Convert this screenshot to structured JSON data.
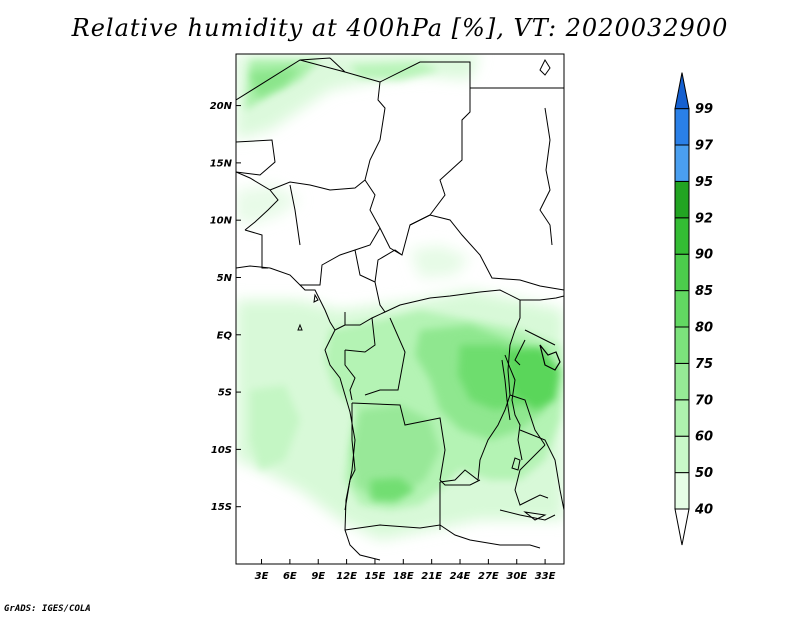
{
  "title": "Relative humidity at 400hPa [%], VT: 2020032900",
  "credit": "GrADS: IGES/COLA",
  "map": {
    "lat_labels": [
      "20N",
      "15N",
      "10N",
      "5N",
      "EQ",
      "5S",
      "10S",
      "15S"
    ],
    "lon_labels": [
      "3E",
      "6E",
      "9E",
      "12E",
      "15E",
      "18E",
      "21E",
      "24E",
      "27E",
      "30E",
      "33E"
    ],
    "extent": {
      "lon": [
        0.3,
        35
      ],
      "lat": [
        -20,
        24.5
      ]
    }
  },
  "colorbar": {
    "levels": [
      "40",
      "50",
      "60",
      "70",
      "75",
      "80",
      "85",
      "90",
      "92",
      "95",
      "97",
      "99"
    ],
    "colors": [
      "#ffffff",
      "#e6fde6",
      "#c8f8c8",
      "#aef2ae",
      "#96ea96",
      "#7ce27c",
      "#62d862",
      "#4ccc4c",
      "#34bc34",
      "#22a422",
      "#4a9ff0",
      "#2a80e8",
      "#1560d0"
    ]
  }
}
